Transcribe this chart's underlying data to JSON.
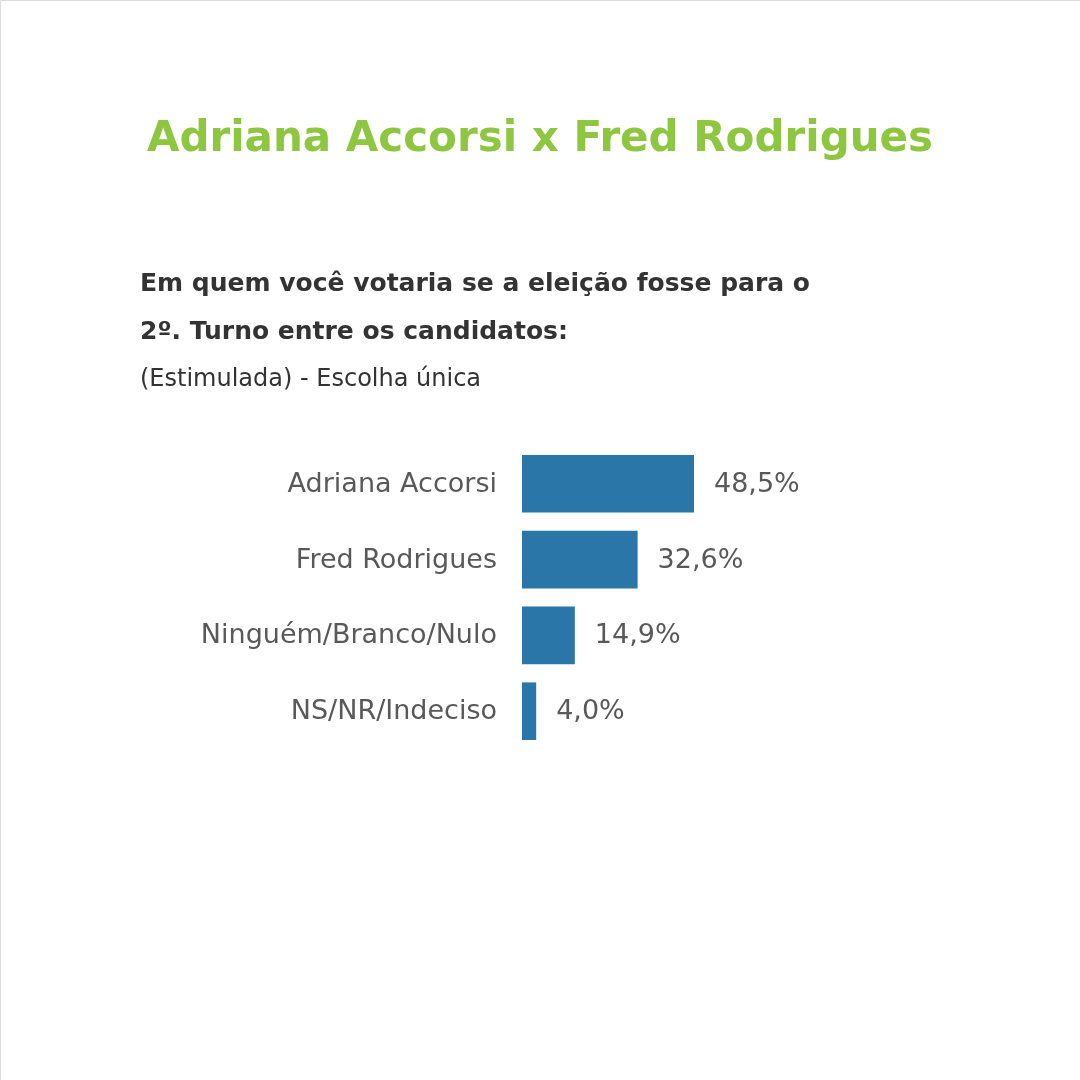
{
  "chart_data": {
    "type": "bar",
    "orientation": "horizontal",
    "title": "Adriana Accorsi x Fred Rodrigues",
    "subtitle": "Em quem você votaria se a eleição fosse para o 2º. Turno entre os candidatos:",
    "annotations": [
      "(Estimulada) - Escolha única"
    ],
    "categories": [
      "Adriana Accorsi",
      "Fred Rodrigues",
      "Ninguém/Branco/Nulo",
      "NS/NR/Indeciso"
    ],
    "values": [
      48.5,
      32.6,
      14.9,
      4.0
    ],
    "value_labels": [
      "48,5%",
      "32,6%",
      "14,9%",
      "4,0%"
    ],
    "color": "#2a76a8"
  }
}
